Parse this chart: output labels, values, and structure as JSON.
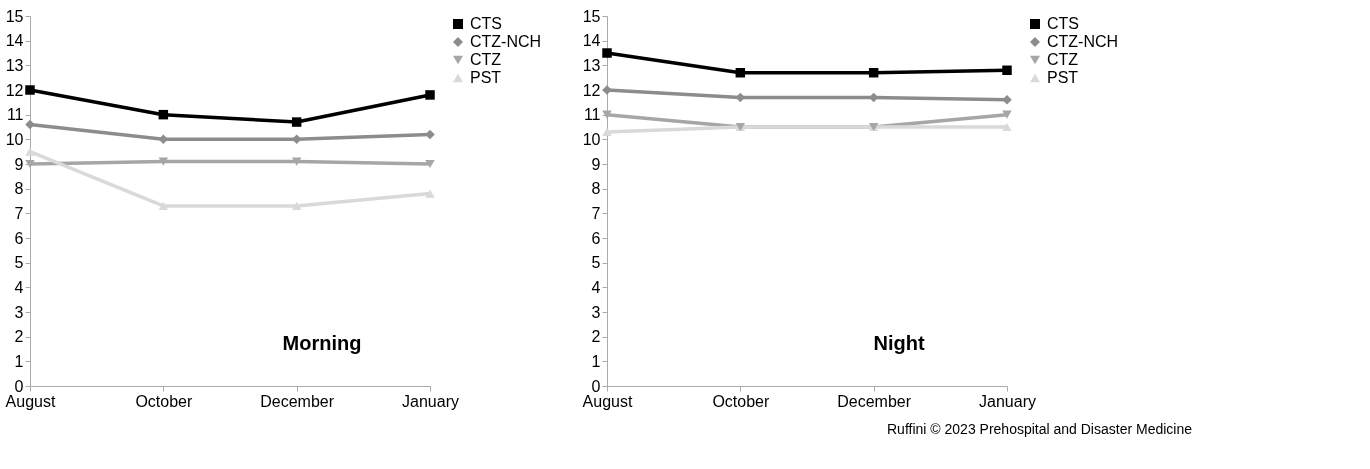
{
  "chart_data": [
    {
      "type": "line",
      "categories": [
        "August",
        "October",
        "December",
        "January"
      ],
      "ylim": [
        0,
        15
      ],
      "yticks": [
        0,
        1,
        2,
        3,
        4,
        5,
        6,
        7,
        8,
        9,
        10,
        11,
        12,
        13,
        14,
        15
      ],
      "grid": false,
      "legend": "right",
      "annotations": [
        "Morning"
      ],
      "series": [
        {
          "name": "CTS",
          "color": "#000000",
          "marker": "square",
          "values": [
            12,
            11,
            10.7,
            11.8
          ]
        },
        {
          "name": "CTZ-NCH",
          "color": "#8c8c8c",
          "marker": "diamond",
          "values": [
            10.6,
            10,
            10,
            10.2
          ]
        },
        {
          "name": "CTZ",
          "color": "#a6a6a6",
          "marker": "triangle-down",
          "values": [
            9,
            9.1,
            9.1,
            9
          ]
        },
        {
          "name": "PST",
          "color": "#d9d9d9",
          "marker": "triangle-up",
          "values": [
            9.5,
            7.3,
            7.3,
            7.8
          ]
        }
      ]
    },
    {
      "type": "line",
      "categories": [
        "August",
        "October",
        "December",
        "January"
      ],
      "ylim": [
        0,
        15
      ],
      "yticks": [
        0,
        1,
        2,
        3,
        4,
        5,
        6,
        7,
        8,
        9,
        10,
        11,
        12,
        13,
        14,
        15
      ],
      "grid": false,
      "legend": "right",
      "annotations": [
        "Night",
        "Ruffini © 2023 Prehospital and Disaster Medicine"
      ],
      "series": [
        {
          "name": "CTS",
          "color": "#000000",
          "marker": "square",
          "values": [
            13.5,
            12.7,
            12.7,
            12.8
          ]
        },
        {
          "name": "CTZ-NCH",
          "color": "#8c8c8c",
          "marker": "diamond",
          "values": [
            12,
            11.7,
            11.7,
            11.6
          ]
        },
        {
          "name": "CTZ",
          "color": "#a6a6a6",
          "marker": "triangle-down",
          "values": [
            11,
            10.5,
            10.5,
            11
          ]
        },
        {
          "name": "PST",
          "color": "#d9d9d9",
          "marker": "triangle-up",
          "values": [
            10.3,
            10.5,
            10.5,
            10.5
          ]
        }
      ]
    }
  ]
}
